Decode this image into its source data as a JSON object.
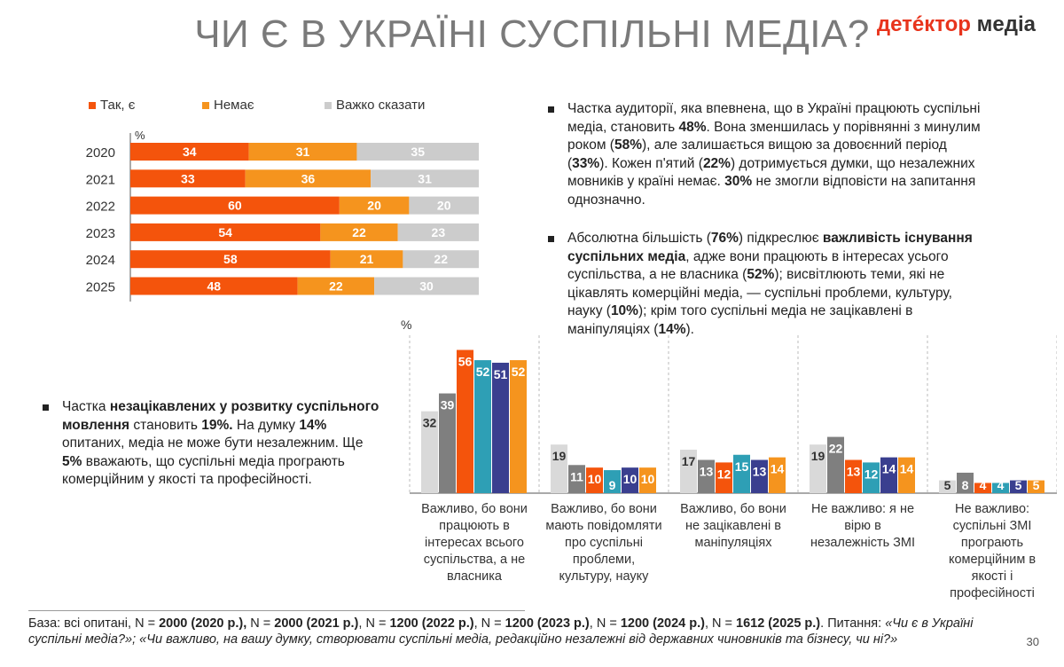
{
  "header": {
    "title": "ЧИ Є В УКРАЇНІ СУСПІЛЬНІ МЕДІА?",
    "logo_part1": "детéктор",
    "logo_part2": " медіа"
  },
  "chart_data": [
    {
      "type": "bar",
      "orientation": "horizontal-stacked",
      "unit": "%",
      "categories": [
        "2020",
        "2021",
        "2022",
        "2023",
        "2024",
        "2025"
      ],
      "series": [
        {
          "name": "Так, є",
          "color": "#f4540c",
          "values": [
            34,
            33,
            60,
            54,
            58,
            48
          ]
        },
        {
          "name": "Немає",
          "color": "#f5941e",
          "values": [
            31,
            36,
            20,
            22,
            21,
            22
          ]
        },
        {
          "name": "Важко сказати",
          "color": "#cccccc",
          "values": [
            35,
            31,
            20,
            23,
            22,
            30
          ]
        }
      ],
      "legend": "top"
    },
    {
      "type": "bar",
      "orientation": "vertical-grouped",
      "unit": "%",
      "categories": [
        [
          "Важливо, бо вони",
          "працюють в",
          "інтересах всього",
          "суспільства, а  не",
          "власника"
        ],
        [
          "Важливо, бо вони",
          "мають повідомляти",
          "про  суспільні",
          "проблеми,",
          "культуру, науку"
        ],
        [
          "Важливо, бо вони",
          "не зацікавлені в",
          "маніпуляціях"
        ],
        [
          "Не важливо: я не",
          "вірю в",
          "незалежність ЗМІ"
        ],
        [
          "Не важливо:",
          "суспільні ЗМІ",
          "програють",
          "комерційним в",
          "якості і",
          "професійності"
        ]
      ],
      "series": [
        {
          "color": "#d9d9d9",
          "values": [
            32,
            19,
            17,
            19,
            5
          ]
        },
        {
          "color": "#7f7f7f",
          "values": [
            39,
            11,
            13,
            22,
            8
          ]
        },
        {
          "color": "#f4540c",
          "values": [
            56,
            10,
            12,
            13,
            4
          ]
        },
        {
          "color": "#2e9fb5",
          "values": [
            52,
            9,
            15,
            12,
            4
          ]
        },
        {
          "color": "#3a3f8f",
          "values": [
            51,
            10,
            13,
            14,
            5
          ]
        },
        {
          "color": "#f5941e",
          "values": [
            52,
            10,
            14,
            14,
            5
          ]
        }
      ],
      "ylim": [
        0,
        60
      ]
    }
  ],
  "bullets": {
    "right1": [
      {
        "t": "Частка аудиторії, яка впевнена, що в Україні працюють суспільні медіа, становить ",
        "b": false
      },
      {
        "t": "48%",
        "b": true
      },
      {
        "t": ". Вона зменшилась  у порівнянні з минулим роком (",
        "b": false
      },
      {
        "t": "58%",
        "b": true
      },
      {
        "t": "), але залишається вищою за довоєнний період (",
        "b": false
      },
      {
        "t": "33%",
        "b": true
      },
      {
        "t": "). Кожен п'ятий (",
        "b": false
      },
      {
        "t": "22%",
        "b": true
      },
      {
        "t": ") дотримується думки, що незалежних мовників у країні немає. ",
        "b": false
      },
      {
        "t": "30%",
        "b": true
      },
      {
        "t": " не змогли відповісти на запитання однозначно.",
        "b": false
      }
    ],
    "right2": [
      {
        "t": "Абсолютна більшість (",
        "b": false
      },
      {
        "t": "76%",
        "b": true
      },
      {
        "t": ") підкреслює ",
        "b": false
      },
      {
        "t": "важливість існування суспільних медіа",
        "b": true
      },
      {
        "t": ", адже вони працюють в інтересах усього суспільства, а не власника (",
        "b": false
      },
      {
        "t": "52%",
        "b": true
      },
      {
        "t": "); висвітлюють теми, які не цікавлять комерційні медіа, — суспільні проблеми, культуру, науку (",
        "b": false
      },
      {
        "t": "10%",
        "b": true
      },
      {
        "t": "); крім того суспільні медіа не зацікавлені в маніпуляціях (",
        "b": false
      },
      {
        "t": "14%",
        "b": true
      },
      {
        "t": ").",
        "b": false
      }
    ],
    "left": [
      {
        "t": "Частка ",
        "b": false
      },
      {
        "t": "незацікавлених у розвитку суспільного мовлення",
        "b": true
      },
      {
        "t": " становить ",
        "b": false
      },
      {
        "t": "19%.",
        "b": true
      },
      {
        "t": " На думку ",
        "b": false
      },
      {
        "t": "14%",
        "b": true
      },
      {
        "t": " опитаних, медіа не може бути незалежним. Ще ",
        "b": false
      },
      {
        "t": "5%",
        "b": true
      },
      {
        "t": " вважають, що суспільні медіа програють комерційним у якості та професійності.",
        "b": false
      }
    ]
  },
  "footer": [
    {
      "t": "База: всі опитані, N = ",
      "b": false,
      "i": false
    },
    {
      "t": "2000 (2020 р.),",
      "b": true,
      "i": false
    },
    {
      "t": " N = ",
      "b": false,
      "i": false
    },
    {
      "t": "2000 (2021 р.)",
      "b": true,
      "i": false
    },
    {
      "t": ", N = ",
      "b": false,
      "i": false
    },
    {
      "t": "1200 (2022 р.)",
      "b": true,
      "i": false
    },
    {
      "t": ", N = ",
      "b": false,
      "i": false
    },
    {
      "t": "1200 (2023 р.)",
      "b": true,
      "i": false
    },
    {
      "t": ", N = ",
      "b": false,
      "i": false
    },
    {
      "t": "1200 (2024 р.)",
      "b": true,
      "i": false
    },
    {
      "t": ", N = ",
      "b": false,
      "i": false
    },
    {
      "t": "1612 (2025 р.)",
      "b": true,
      "i": false
    },
    {
      "t": ". Питання: ",
      "b": false,
      "i": false
    },
    {
      "t": "«Чи є в Україні суспільні медіа?»; «Чи важливо, на вашу думку, створювати суспільні медіа, редакційно незалежні від державних чиновників та бізнесу, чи ні?»",
      "b": false,
      "i": true
    }
  ],
  "page_number": "30"
}
